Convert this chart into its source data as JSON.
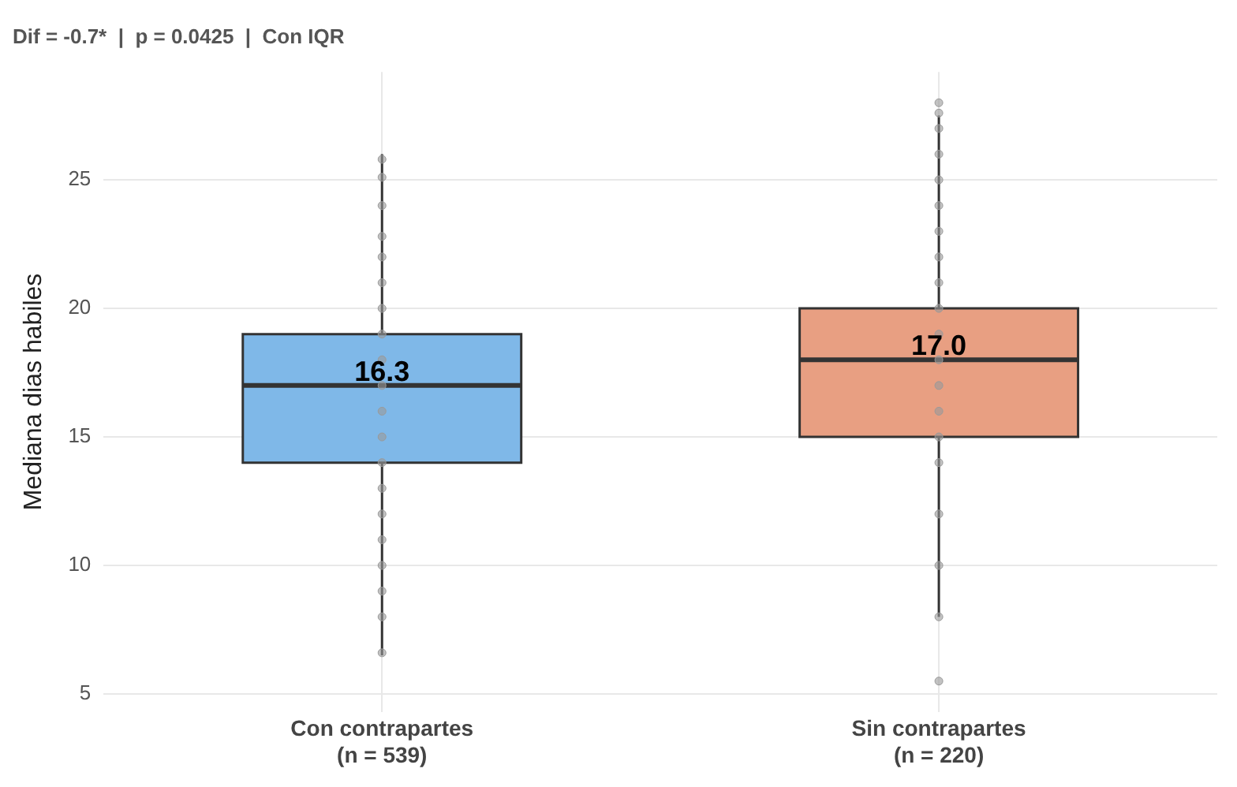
{
  "chart_data": {
    "type": "box",
    "title": "Dif = -0.7*  |  p = 0.0425  |  Con IQR",
    "ylabel": "Mediana dias habiles",
    "categories": [
      "Con contrapartes\n(n = 539)",
      "Sin contrapartes\n(n = 220)"
    ],
    "colors": [
      "#7fb8e8",
      "#e89f82"
    ],
    "boxes": [
      {
        "low": 6.5,
        "q1": 14,
        "median": 17,
        "q3": 19,
        "high": 26
      },
      {
        "low": 8,
        "q1": 15,
        "median": 18,
        "q3": 20,
        "high": 27.5
      }
    ],
    "series": [
      {
        "type": "scatter",
        "color": "#9a9a9a",
        "x": [
          "Con contrapartes\n(n = 539)",
          "Con contrapartes\n(n = 539)",
          "Con contrapartes\n(n = 539)",
          "Con contrapartes\n(n = 539)",
          "Con contrapartes\n(n = 539)",
          "Con contrapartes\n(n = 539)",
          "Con contrapartes\n(n = 539)",
          "Con contrapartes\n(n = 539)",
          "Con contrapartes\n(n = 539)",
          "Con contrapartes\n(n = 539)",
          "Con contrapartes\n(n = 539)",
          "Con contrapartes\n(n = 539)",
          "Con contrapartes\n(n = 539)",
          "Con contrapartes\n(n = 539)",
          "Con contrapartes\n(n = 539)",
          "Con contrapartes\n(n = 539)",
          "Con contrapartes\n(n = 539)",
          "Con contrapartes\n(n = 539)",
          "Con contrapartes\n(n = 539)",
          "Con contrapartes\n(n = 539)",
          "Sin contrapartes\n(n = 220)",
          "Sin contrapartes\n(n = 220)",
          "Sin contrapartes\n(n = 220)",
          "Sin contrapartes\n(n = 220)",
          "Sin contrapartes\n(n = 220)",
          "Sin contrapartes\n(n = 220)",
          "Sin contrapartes\n(n = 220)",
          "Sin contrapartes\n(n = 220)",
          "Sin contrapartes\n(n = 220)",
          "Sin contrapartes\n(n = 220)",
          "Sin contrapartes\n(n = 220)",
          "Sin contrapartes\n(n = 220)",
          "Sin contrapartes\n(n = 220)",
          "Sin contrapartes\n(n = 220)",
          "Sin contrapartes\n(n = 220)",
          "Sin contrapartes\n(n = 220)",
          "Sin contrapartes\n(n = 220)",
          "Sin contrapartes\n(n = 220)",
          "Sin contrapartes\n(n = 220)",
          "Sin contrapartes\n(n = 220)"
        ],
        "values": [
          25.8,
          25.1,
          24,
          22.8,
          22,
          21,
          20,
          19,
          18,
          17,
          16,
          15,
          14,
          13,
          12,
          11,
          10,
          9,
          8,
          6.6,
          28,
          27.6,
          27,
          26,
          25,
          24,
          23,
          22,
          21,
          20,
          19,
          18,
          17,
          16,
          15,
          14,
          12,
          10,
          8,
          5.5
        ]
      }
    ],
    "annotations": [
      {
        "text": "16.3",
        "x": "Con contrapartes\n(n = 539)",
        "y": 17
      },
      {
        "text": "17.0",
        "x": "Sin contrapartes\n(n = 220)",
        "y": 18
      }
    ],
    "ylim": [
      4.3,
      29.2
    ],
    "yticks": [
      5,
      10,
      15,
      20,
      25
    ],
    "grid": true,
    "marker": "circle"
  }
}
